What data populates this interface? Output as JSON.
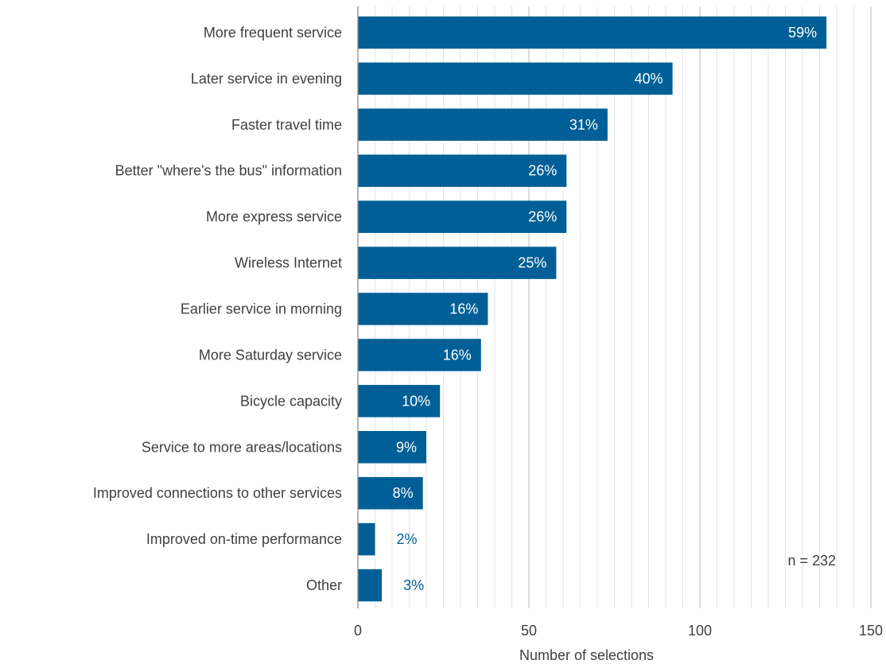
{
  "chart_data": {
    "type": "bar",
    "orientation": "horizontal",
    "categories": [
      "More frequent service",
      "Later service in evening",
      "Faster travel time",
      "Better \"where's the bus\" information",
      "More express service",
      "Wireless Internet",
      "Earlier service in morning",
      "More Saturday service",
      "Bicycle capacity",
      "Service to more areas/locations",
      "Improved connections to other services",
      "Improved on-time performance",
      "Other"
    ],
    "values": [
      137,
      92,
      73,
      61,
      61,
      58,
      38,
      36,
      24,
      20,
      19,
      5,
      7
    ],
    "data_labels": [
      "59%",
      "40%",
      "31%",
      "26%",
      "26%",
      "25%",
      "16%",
      "16%",
      "10%",
      "9%",
      "8%",
      "2%",
      "3%"
    ],
    "xlabel": "Number of selections",
    "xlim": [
      0,
      150
    ],
    "xticks": [
      0,
      50,
      100,
      150
    ],
    "grid": true,
    "annotation": "n = 232",
    "colors": {
      "bar": "#005f96",
      "label_inside": "#ffffff",
      "label_outside": "#005f96",
      "grid_minor": "#e3e3e3",
      "grid_major": "#c8c8c8",
      "axis": "#8c8c8c",
      "text": "#404040"
    }
  }
}
